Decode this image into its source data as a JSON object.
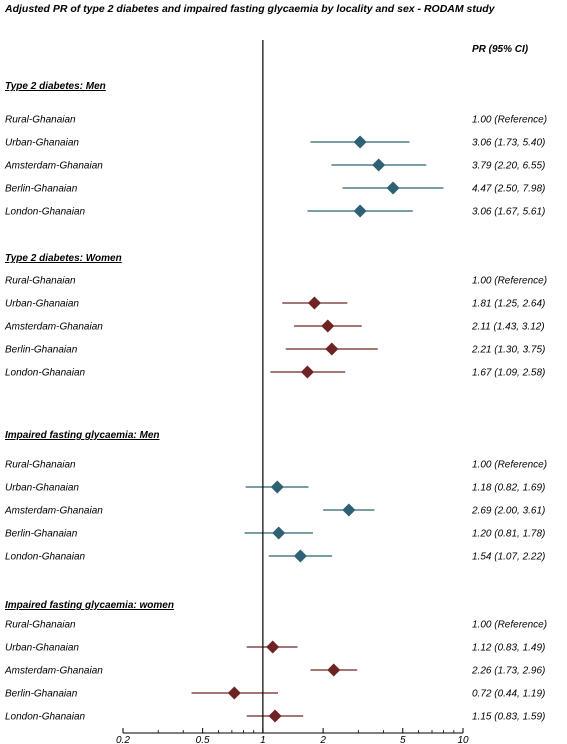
{
  "chart_data": {
    "type": "forest",
    "title": "Adjusted PR of type 2 diabetes and impaired fasting glycaemia by locality and sex - RODAM study",
    "column_header": "PR (95% CI)",
    "x_scale": "log",
    "xlim": [
      0.2,
      10
    ],
    "x_ticks": [
      0.2,
      0.5,
      1,
      2,
      5,
      10
    ],
    "x_tick_labels": [
      "0.2",
      "0.5",
      "1",
      "2",
      "5",
      "10"
    ],
    "reference_line": 1,
    "colors": {
      "men": "#2e6173",
      "women": "#6e2424"
    },
    "groups": [
      {
        "name": "Type 2 diabetes: Men",
        "color_key": "men",
        "rows": [
          {
            "label": "Rural-Ghanaian",
            "estimate": null,
            "lower": null,
            "upper": null,
            "text": "1.00 (Reference)"
          },
          {
            "label": "Urban-Ghanaian",
            "estimate": 3.06,
            "lower": 1.73,
            "upper": 5.4,
            "text": "3.06 (1.73, 5.40)"
          },
          {
            "label": "Amsterdam-Ghanaian",
            "estimate": 3.79,
            "lower": 2.2,
            "upper": 6.55,
            "text": "3.79 (2.20, 6.55)"
          },
          {
            "label": "Berlin-Ghanaian",
            "estimate": 4.47,
            "lower": 2.5,
            "upper": 7.98,
            "text": "4.47 (2.50, 7.98)"
          },
          {
            "label": "London-Ghanaian",
            "estimate": 3.06,
            "lower": 1.67,
            "upper": 5.61,
            "text": "3.06 (1.67, 5.61)"
          }
        ]
      },
      {
        "name": "Type 2 diabetes: Women",
        "color_key": "women",
        "rows": [
          {
            "label": "Rural-Ghanaian",
            "estimate": null,
            "lower": null,
            "upper": null,
            "text": "1.00 (Reference)"
          },
          {
            "label": "Urban-Ghanaian",
            "estimate": 1.81,
            "lower": 1.25,
            "upper": 2.64,
            "text": "1.81 (1.25, 2.64)"
          },
          {
            "label": "Amsterdam-Ghanaian",
            "estimate": 2.11,
            "lower": 1.43,
            "upper": 3.12,
            "text": "2.11 (1.43, 3.12)"
          },
          {
            "label": "Berlin-Ghanaian",
            "estimate": 2.21,
            "lower": 1.3,
            "upper": 3.75,
            "text": "2.21 (1.30, 3.75)"
          },
          {
            "label": "London-Ghanaian",
            "estimate": 1.67,
            "lower": 1.09,
            "upper": 2.58,
            "text": "1.67 (1.09, 2.58)"
          }
        ]
      },
      {
        "name": "Impaired fasting glycaemia: Men",
        "color_key": "men",
        "rows": [
          {
            "label": "Rural-Ghanaian",
            "estimate": null,
            "lower": null,
            "upper": null,
            "text": "1.00 (Reference)"
          },
          {
            "label": "Urban-Ghanaian",
            "estimate": 1.18,
            "lower": 0.82,
            "upper": 1.69,
            "text": "1.18 (0.82, 1.69)"
          },
          {
            "label": "Amsterdam-Ghanaian",
            "estimate": 2.69,
            "lower": 2.0,
            "upper": 3.61,
            "text": "2.69 (2.00, 3.61)"
          },
          {
            "label": "Berlin-Ghanaian",
            "estimate": 1.2,
            "lower": 0.81,
            "upper": 1.78,
            "text": "1.20 (0.81, 1.78)"
          },
          {
            "label": "London-Ghanaian",
            "estimate": 1.54,
            "lower": 1.07,
            "upper": 2.22,
            "text": "1.54 (1.07, 2.22)"
          }
        ]
      },
      {
        "name": "Impaired fasting glycaemia: women",
        "color_key": "women",
        "rows": [
          {
            "label": "Rural-Ghanaian",
            "estimate": null,
            "lower": null,
            "upper": null,
            "text": "1.00 (Reference)"
          },
          {
            "label": "Urban-Ghanaian",
            "estimate": 1.12,
            "lower": 0.83,
            "upper": 1.49,
            "text": "1.12 (0.83, 1.49)"
          },
          {
            "label": "Amsterdam-Ghanaian",
            "estimate": 2.26,
            "lower": 1.73,
            "upper": 2.96,
            "text": "2.26 (1.73, 2.96)"
          },
          {
            "label": "Berlin-Ghanaian",
            "estimate": 0.72,
            "lower": 0.44,
            "upper": 1.19,
            "text": "0.72 (0.44, 1.19)"
          },
          {
            "label": "London-Ghanaian",
            "estimate": 1.15,
            "lower": 0.83,
            "upper": 1.59,
            "text": "1.15 (0.83, 1.59)"
          }
        ]
      }
    ]
  }
}
